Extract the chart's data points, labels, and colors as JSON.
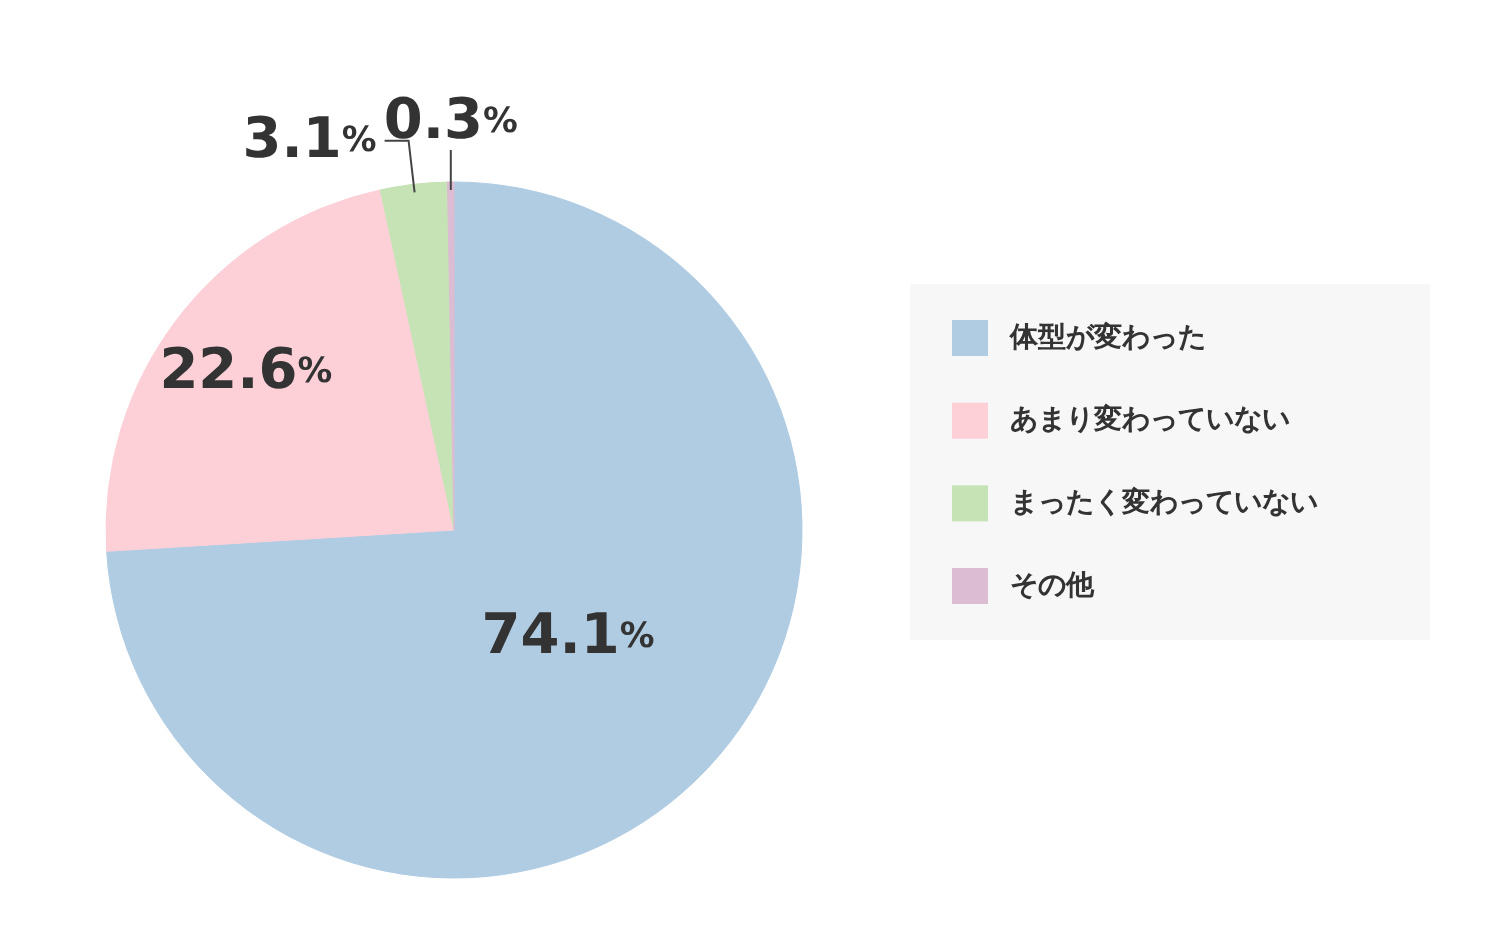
{
  "chart_data": {
    "type": "pie",
    "categories": [
      "体型が変わった",
      "あまり変わっていない",
      "まったく変わっていない",
      "その他"
    ],
    "values": [
      74.1,
      22.6,
      3.1,
      0.3
    ],
    "value_labels": [
      "74.1%",
      "22.6%",
      "3.1%",
      "0.3%"
    ],
    "colors": [
      "#b0cce3",
      "#fdd0d8",
      "#c6e3b6",
      "#dcbcd2"
    ],
    "legend": "right"
  }
}
